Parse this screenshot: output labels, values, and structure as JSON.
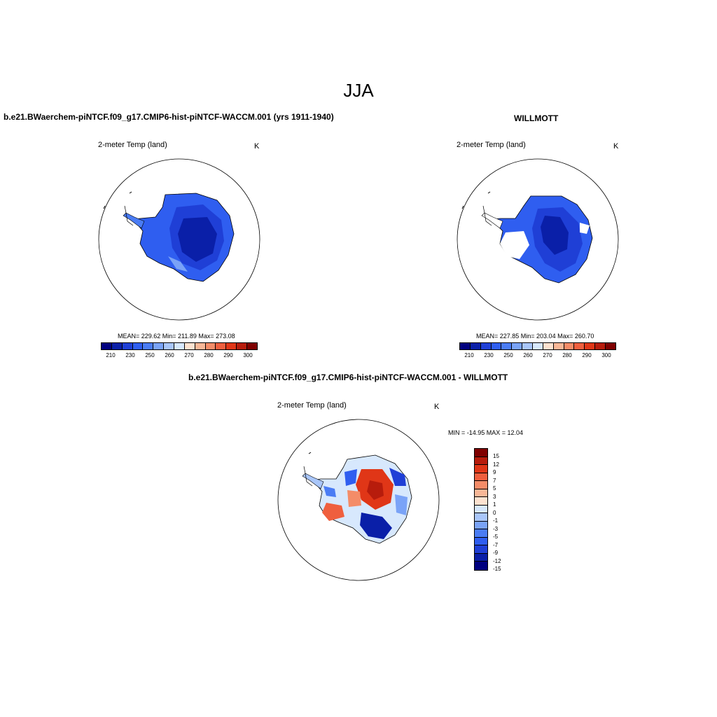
{
  "figure": {
    "season": "JJA"
  },
  "panels": {
    "model": {
      "title": "b.e21.BWaerchem-piNTCF.f09_g17.CMIP6-hist-piNTCF-WACCM.001 (yrs 1911-1940)",
      "variable": "2-meter Temp (land)",
      "units": "K",
      "stats": "MEAN= 229.62  Min= 211.89  Max= 273.08",
      "mean": 229.62,
      "min": 211.89,
      "max": 273.08
    },
    "obs": {
      "title": "WILLMOTT",
      "variable": "2-meter Temp (land)",
      "units": "K",
      "stats": "MEAN= 227.85  Min= 203.04  Max= 260.70",
      "mean": 227.85,
      "min": 203.04,
      "max": 260.7
    },
    "diff": {
      "title": "b.e21.BWaerchem-piNTCF.f09_g17.CMIP6-hist-piNTCF-WACCM.001 - WILLMOTT",
      "variable": "2-meter Temp (land)",
      "units": "K",
      "stats": "MIN = -14.95 MAX =  12.04",
      "min": -14.95,
      "max": 12.04
    }
  },
  "colorbar_abs": {
    "colors": [
      "#00007f",
      "#0a1fa8",
      "#1f3fd6",
      "#2f5ef0",
      "#4a7cf4",
      "#7aa3f7",
      "#a9c6fa",
      "#d7e8fd",
      "#fde2d0",
      "#f8b797",
      "#f48c68",
      "#ef5f3e",
      "#e03617",
      "#b71c0c",
      "#7f0000"
    ],
    "tick_labels": [
      "210",
      "230",
      "250",
      "260",
      "270",
      "280",
      "290",
      "300"
    ]
  },
  "colorbar_diff": {
    "colors": [
      "#7f0000",
      "#b71c0c",
      "#e03617",
      "#ef5f3e",
      "#f48c68",
      "#f8b797",
      "#fde2d0",
      "#d7e8fd",
      "#a9c6fa",
      "#7aa3f7",
      "#4a7cf4",
      "#2f5ef0",
      "#1f3fd6",
      "#0a1fa8",
      "#00007f"
    ],
    "tick_labels": [
      "15",
      "12",
      "9",
      "7",
      "5",
      "3",
      "1",
      "0",
      "-1",
      "-3",
      "-5",
      "-7",
      "-9",
      "-12",
      "-15"
    ]
  },
  "map_colors": {
    "deep_blue": "#0a1fa8",
    "mid_blue": "#1f3fd6",
    "light_blue": "#2f5ef0",
    "pale_blue": "#7aa3f7",
    "white": "#ffffff",
    "red": "#e03617",
    "light_red": "#f48c68",
    "dark_red": "#b71c0c"
  }
}
